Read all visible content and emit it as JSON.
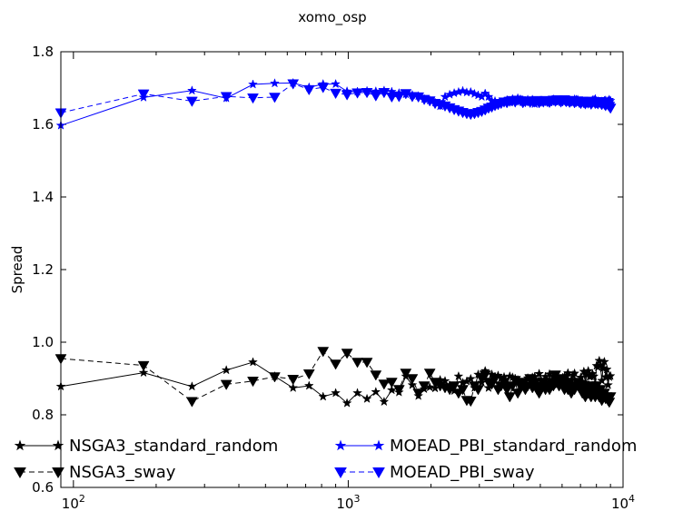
{
  "chart_data": {
    "type": "line",
    "title": "xomo_osp",
    "xlabel": "",
    "ylabel": "Spread",
    "xscale": "log",
    "xlim": [
      90,
      10000
    ],
    "ylim": [
      0.6,
      1.8
    ],
    "grid": false,
    "legend_placement": "bottom-left, two columns",
    "x_ticks": [
      {
        "base": "10",
        "exp": "2",
        "value": 100
      },
      {
        "base": "10",
        "exp": "3",
        "value": 1000
      },
      {
        "base": "10",
        "exp": "4",
        "value": 10000
      }
    ],
    "y_ticks": [
      {
        "label": "0.6",
        "value": 0.6
      },
      {
        "label": "0.8",
        "value": 0.8
      },
      {
        "label": "1.0",
        "value": 1.0
      },
      {
        "label": "1.2",
        "value": 1.2
      },
      {
        "label": "1.4",
        "value": 1.4
      },
      {
        "label": "1.6",
        "value": 1.6
      },
      {
        "label": "1.8",
        "value": 1.8
      }
    ],
    "series": [
      {
        "name": "NSGA3_standard_random",
        "color": "#000000",
        "linestyle": "solid",
        "marker": "star",
        "x": [
          90,
          180,
          270,
          360,
          450,
          540,
          630,
          720,
          810,
          900,
          990,
          1080,
          1170,
          1260,
          1350,
          1440,
          1530,
          1620,
          1710,
          1800,
          1890,
          1980,
          2070,
          2160,
          2250,
          2340,
          2430,
          2520,
          2610,
          2700,
          2790,
          2880,
          2970,
          3060,
          3150,
          3240,
          3330,
          3420,
          3510,
          3600,
          3690,
          3780,
          3870,
          3960,
          4050,
          4140,
          4230,
          4320,
          4410,
          4500,
          4590,
          4680,
          4770,
          4860,
          4950,
          5040,
          5130,
          5220,
          5310,
          5400,
          5490,
          5580,
          5670,
          5760,
          5850,
          5940,
          6030,
          6120,
          6210,
          6300,
          6390,
          6480,
          6570,
          6660,
          6750,
          6840,
          6930,
          7020,
          7110,
          7200,
          7290,
          7380,
          7470,
          7560,
          7650,
          7740,
          7830,
          7920,
          8010,
          8100,
          8190,
          8280,
          8370,
          8460,
          8550,
          8640,
          8730,
          8820,
          8910,
          9000
        ],
        "y": [
          0.878,
          0.916,
          0.878,
          0.923,
          0.945,
          0.906,
          0.874,
          0.88,
          0.85,
          0.86,
          0.832,
          0.86,
          0.844,
          0.863,
          0.836,
          0.868,
          0.862,
          0.906,
          0.882,
          0.852,
          0.871,
          0.876,
          0.873,
          0.896,
          0.893,
          0.881,
          0.866,
          0.906,
          0.888,
          0.892,
          0.899,
          0.874,
          0.911,
          0.889,
          0.921,
          0.874,
          0.911,
          0.905,
          0.908,
          0.901,
          0.904,
          0.883,
          0.906,
          0.903,
          0.9,
          0.896,
          0.88,
          0.888,
          0.893,
          0.901,
          0.88,
          0.903,
          0.905,
          0.88,
          0.913,
          0.893,
          0.877,
          0.905,
          0.882,
          0.912,
          0.88,
          0.904,
          0.906,
          0.882,
          0.897,
          0.888,
          0.902,
          0.905,
          0.905,
          0.915,
          0.88,
          0.88,
          0.909,
          0.914,
          0.877,
          0.881,
          0.893,
          0.903,
          0.891,
          0.919,
          0.889,
          0.91,
          0.921,
          0.905,
          0.906,
          0.913,
          0.906,
          0.887,
          0.935,
          0.931,
          0.949,
          0.936,
          0.894,
          0.928,
          0.946,
          0.904,
          0.925,
          0.882,
          0.904,
          0.907
        ]
      },
      {
        "name": "NSGA3_sway",
        "color": "#000000",
        "linestyle": "dashed",
        "marker": "triangle_down",
        "x": [
          90,
          180,
          270,
          360,
          450,
          540,
          630,
          720,
          810,
          900,
          990,
          1080,
          1170,
          1260,
          1350,
          1440,
          1530,
          1620,
          1710,
          1800,
          1890,
          1980,
          2070,
          2160,
          2250,
          2340,
          2430,
          2520,
          2610,
          2700,
          2790,
          2880,
          2970,
          3060,
          3150,
          3240,
          3330,
          3420,
          3510,
          3600,
          3690,
          3780,
          3870,
          3960,
          4050,
          4140,
          4230,
          4320,
          4410,
          4500,
          4590,
          4680,
          4770,
          4860,
          4950,
          5040,
          5130,
          5220,
          5310,
          5400,
          5490,
          5580,
          5670,
          5760,
          5850,
          5940,
          6030,
          6120,
          6210,
          6300,
          6390,
          6480,
          6570,
          6660,
          6750,
          6840,
          6930,
          7020,
          7110,
          7200,
          7290,
          7380,
          7470,
          7560,
          7650,
          7740,
          7830,
          7920,
          8010,
          8100,
          8190,
          8280,
          8370,
          8460,
          8550,
          8640,
          8730,
          8820,
          8910,
          9000
        ],
        "y": [
          0.955,
          0.936,
          0.837,
          0.884,
          0.893,
          0.905,
          0.898,
          0.913,
          0.975,
          0.94,
          0.97,
          0.945,
          0.945,
          0.91,
          0.885,
          0.89,
          0.87,
          0.915,
          0.9,
          0.86,
          0.88,
          0.915,
          0.89,
          0.88,
          0.875,
          0.87,
          0.88,
          0.86,
          0.87,
          0.84,
          0.838,
          0.88,
          0.87,
          0.9,
          0.91,
          0.89,
          0.885,
          0.9,
          0.87,
          0.88,
          0.89,
          0.87,
          0.85,
          0.88,
          0.895,
          0.86,
          0.88,
          0.89,
          0.87,
          0.88,
          0.9,
          0.875,
          0.89,
          0.87,
          0.86,
          0.88,
          0.89,
          0.87,
          0.88,
          0.87,
          0.89,
          0.88,
          0.91,
          0.895,
          0.88,
          0.9,
          0.89,
          0.87,
          0.88,
          0.87,
          0.89,
          0.86,
          0.88,
          0.87,
          0.88,
          0.89,
          0.875,
          0.87,
          0.86,
          0.88,
          0.85,
          0.87,
          0.86,
          0.88,
          0.85,
          0.86,
          0.87,
          0.85,
          0.88,
          0.86,
          0.85,
          0.87,
          0.84,
          0.85,
          0.86,
          0.845,
          0.85,
          0.84,
          0.835,
          0.85
        ]
      },
      {
        "name": "MOEAD_PBI_standard_random",
        "color": "#0000ff",
        "linestyle": "solid",
        "marker": "star",
        "x": [
          90,
          180,
          270,
          360,
          450,
          540,
          630,
          720,
          810,
          900,
          990,
          1080,
          1170,
          1260,
          1350,
          1440,
          1530,
          1620,
          1710,
          1800,
          1890,
          1980,
          2070,
          2160,
          2250,
          2340,
          2430,
          2520,
          2610,
          2700,
          2790,
          2880,
          2970,
          3060,
          3150,
          3240,
          3330,
          3420,
          3510,
          3600,
          3690,
          3780,
          3870,
          3960,
          4050,
          4140,
          4230,
          4320,
          4410,
          4500,
          4590,
          4680,
          4770,
          4860,
          4950,
          5040,
          5130,
          5220,
          5310,
          5400,
          5490,
          5580,
          5670,
          5760,
          5850,
          5940,
          6030,
          6120,
          6210,
          6300,
          6390,
          6480,
          6570,
          6660,
          6750,
          6840,
          6930,
          7020,
          7110,
          7200,
          7290,
          7380,
          7470,
          7560,
          7650,
          7740,
          7830,
          7920,
          8010,
          8100,
          8190,
          8280,
          8370,
          8460,
          8550,
          8640,
          8730,
          8820,
          8910,
          9000
        ],
        "y": [
          1.597,
          1.674,
          1.693,
          1.672,
          1.71,
          1.713,
          1.714,
          1.702,
          1.711,
          1.711,
          1.691,
          1.69,
          1.692,
          1.691,
          1.693,
          1.69,
          1.686,
          1.683,
          1.681,
          1.678,
          1.67,
          1.666,
          1.66,
          1.65,
          1.676,
          1.682,
          1.686,
          1.689,
          1.692,
          1.688,
          1.689,
          1.684,
          1.68,
          1.676,
          1.685,
          1.676,
          1.665,
          1.664,
          1.656,
          1.661,
          1.663,
          1.667,
          1.66,
          1.67,
          1.666,
          1.672,
          1.669,
          1.664,
          1.664,
          1.668,
          1.665,
          1.668,
          1.656,
          1.664,
          1.663,
          1.661,
          1.661,
          1.662,
          1.664,
          1.661,
          1.664,
          1.669,
          1.666,
          1.665,
          1.662,
          1.666,
          1.666,
          1.665,
          1.667,
          1.661,
          1.661,
          1.66,
          1.662,
          1.669,
          1.668,
          1.668,
          1.662,
          1.661,
          1.662,
          1.657,
          1.662,
          1.66,
          1.663,
          1.657,
          1.659,
          1.667,
          1.667,
          1.67,
          1.664,
          1.664,
          1.661,
          1.66,
          1.663,
          1.661,
          1.665,
          1.666,
          1.663,
          1.664,
          1.668,
          1.665
        ]
      },
      {
        "name": "MOEAD_PBI_sway",
        "color": "#0000ff",
        "linestyle": "dashed",
        "marker": "triangle_down",
        "x": [
          90,
          180,
          270,
          360,
          450,
          540,
          630,
          720,
          810,
          900,
          990,
          1080,
          1170,
          1260,
          1350,
          1440,
          1530,
          1620,
          1710,
          1800,
          1890,
          1980,
          2070,
          2160,
          2250,
          2340,
          2430,
          2520,
          2610,
          2700,
          2790,
          2880,
          2970,
          3060,
          3150,
          3240,
          3330,
          3420,
          3510,
          3600,
          3690,
          3780,
          3870,
          3960,
          4050,
          4140,
          4230,
          4320,
          4410,
          4500,
          4590,
          4680,
          4770,
          4860,
          4950,
          5040,
          5130,
          5220,
          5310,
          5400,
          5490,
          5580,
          5670,
          5760,
          5850,
          5940,
          6030,
          6120,
          6210,
          6300,
          6390,
          6480,
          6570,
          6660,
          6750,
          6840,
          6930,
          7020,
          7110,
          7200,
          7290,
          7380,
          7470,
          7560,
          7650,
          7740,
          7830,
          7920,
          8010,
          8100,
          8190,
          8280,
          8370,
          8460,
          8550,
          8640,
          8730,
          8820,
          8910,
          9000
        ],
        "y": [
          1.632,
          1.684,
          1.664,
          1.677,
          1.673,
          1.675,
          1.712,
          1.696,
          1.702,
          1.686,
          1.682,
          1.687,
          1.688,
          1.679,
          1.688,
          1.676,
          1.677,
          1.685,
          1.677,
          1.676,
          1.669,
          1.665,
          1.658,
          1.655,
          1.651,
          1.646,
          1.641,
          1.637,
          1.633,
          1.63,
          1.628,
          1.63,
          1.633,
          1.636,
          1.64,
          1.645,
          1.648,
          1.652,
          1.655,
          1.658,
          1.662,
          1.66,
          1.664,
          1.666,
          1.662,
          1.667,
          1.665,
          1.66,
          1.663,
          1.665,
          1.661,
          1.664,
          1.662,
          1.666,
          1.66,
          1.664,
          1.662,
          1.666,
          1.663,
          1.661,
          1.665,
          1.667,
          1.664,
          1.668,
          1.666,
          1.662,
          1.665,
          1.668,
          1.663,
          1.666,
          1.661,
          1.664,
          1.666,
          1.66,
          1.663,
          1.665,
          1.661,
          1.658,
          1.664,
          1.66,
          1.657,
          1.662,
          1.659,
          1.664,
          1.656,
          1.661,
          1.663,
          1.658,
          1.66,
          1.657,
          1.663,
          1.659,
          1.655,
          1.661,
          1.656,
          1.652,
          1.658,
          1.654,
          1.65,
          1.645
        ]
      }
    ]
  }
}
